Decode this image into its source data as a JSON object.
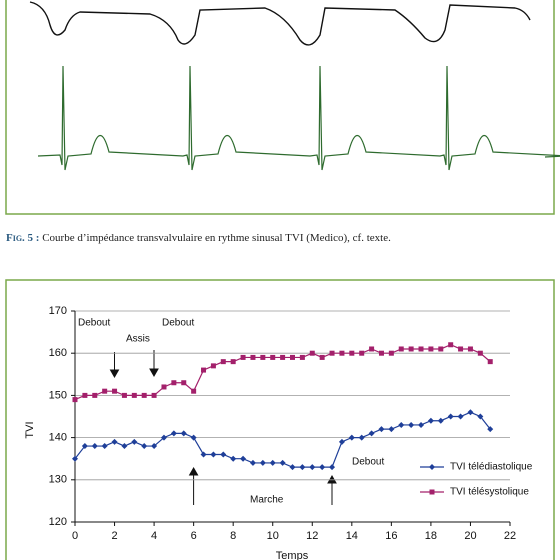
{
  "caption": {
    "label": "Fig. 5 :",
    "text": "Courbe d’impédance transvalvulaire en rythme sinusal TVI (Medico), cf. texte."
  },
  "chart_data": {
    "type": "line",
    "xlabel": "Temps",
    "ylabel": "TVI",
    "x": [
      0,
      0.5,
      1,
      1.5,
      2,
      2.5,
      3,
      3.5,
      4,
      4.5,
      5,
      5.5,
      6,
      6.5,
      7,
      7.5,
      8,
      8.5,
      9,
      9.5,
      10,
      10.5,
      11,
      11.5,
      12,
      12.5,
      13,
      13.5,
      14,
      14.5,
      15,
      15.5,
      16,
      16.5,
      17,
      17.5,
      18,
      18.5,
      19,
      19.5,
      20,
      20.5,
      21
    ],
    "series": [
      {
        "name": "TVI télédiastolique",
        "color": "#1f3f99",
        "marker": "diamond",
        "values": [
          135,
          138,
          138,
          138,
          139,
          138,
          139,
          138,
          138,
          140,
          141,
          141,
          140,
          136,
          136,
          136,
          135,
          135,
          134,
          134,
          134,
          134,
          133,
          133,
          133,
          133,
          133,
          139,
          140,
          140,
          141,
          142,
          142,
          143,
          143,
          143,
          144,
          144,
          145,
          145,
          146,
          145,
          142
        ]
      },
      {
        "name": "TVI télésystolique",
        "color": "#a3206b",
        "marker": "square",
        "values": [
          149,
          150,
          150,
          151,
          151,
          150,
          150,
          150,
          150,
          152,
          153,
          153,
          151,
          156,
          157,
          158,
          158,
          159,
          159,
          159,
          159,
          159,
          159,
          159,
          160,
          159,
          160,
          160,
          160,
          160,
          161,
          160,
          160,
          161,
          161,
          161,
          161,
          161,
          162,
          161,
          161,
          160,
          158
        ]
      }
    ],
    "xlim": [
      0,
      22
    ],
    "xticks": [
      0,
      2,
      4,
      6,
      8,
      10,
      12,
      14,
      16,
      18,
      20,
      22
    ],
    "ylim": [
      120,
      170
    ],
    "yticks": [
      120,
      130,
      140,
      150,
      160,
      170
    ],
    "grid": true,
    "annotations": [
      "Debout",
      "Assis",
      "Debout",
      "Debout",
      "Marche"
    ]
  }
}
